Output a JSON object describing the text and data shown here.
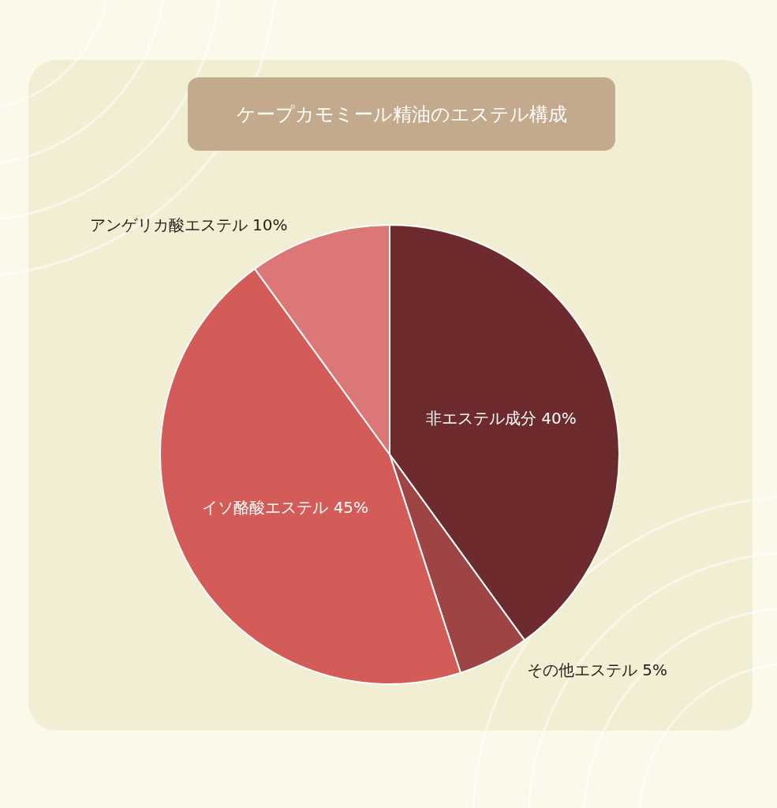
{
  "chart_data": {
    "type": "pie",
    "title": "ケープカモミール精油のエステル構成",
    "categories": [
      "非エステル成分",
      "その他エステル",
      "イソ酪酸エステル",
      "アンゲリカ酸エステル"
    ],
    "values": [
      40,
      5,
      45,
      10
    ],
    "value_labels": [
      "40%",
      "5%",
      "45%",
      "10%"
    ],
    "colors": [
      "#6d2b2d",
      "#9e4444",
      "#d45c58",
      "#dc7777"
    ]
  }
}
